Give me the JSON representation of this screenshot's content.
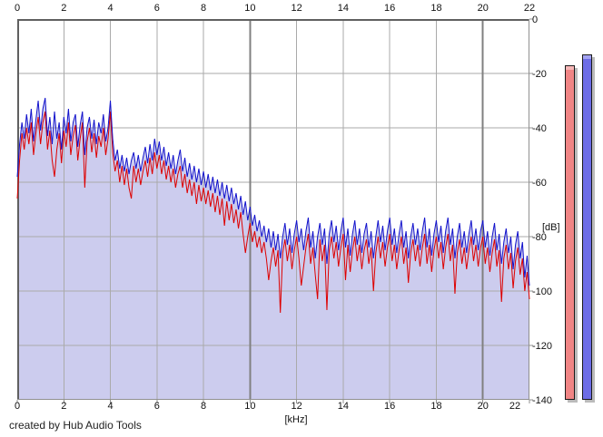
{
  "credit": "created by Hub Audio Tools",
  "colors": {
    "background": "#ffffff",
    "red_trace": "#dd0000",
    "blue_trace": "#1212cc",
    "area_fill": "#ccccee",
    "grid_minor": "#aaaaaa",
    "grid_major": "#808080",
    "axis_dark": "#606060",
    "axis_light": "#909090",
    "meter_red": "#f08585",
    "meter_red_cap": "#f7b6b6",
    "meter_blue": "#6d6de6",
    "meter_blue_cap": "#a3a3f2",
    "meter_shadow": "#bbbbbb"
  },
  "meters": {
    "floor_db": -140,
    "left_bar": {
      "channel": "red",
      "value_db": -17
    },
    "right_bar": {
      "channel": "blue",
      "value_db": -13
    }
  },
  "chart_data": {
    "type": "area",
    "title": "",
    "xlabel": "[kHz]",
    "ylabel": "[dB]",
    "xlim": [
      0,
      22
    ],
    "ylim": [
      -140,
      0
    ],
    "grid": true,
    "x_axis": {
      "ticks": [
        0,
        2,
        4,
        6,
        8,
        10,
        12,
        14,
        16,
        18,
        20,
        22
      ],
      "major_gridlines": [
        10,
        20
      ],
      "unit": "[kHz]"
    },
    "y_axis": {
      "ticks": [
        0,
        -20,
        -40,
        -60,
        -80,
        -100,
        -120,
        -140
      ],
      "unit": "[dB]"
    },
    "x_start": 0,
    "x_step": 0.1,
    "series": [
      {
        "name": "red-channel",
        "color": "#dd0000",
        "values": [
          -66,
          -52,
          -42,
          -48,
          -40,
          -46,
          -38,
          -50,
          -42,
          -36,
          -46,
          -38,
          -34,
          -48,
          -41,
          -52,
          -58,
          -48,
          -42,
          -53,
          -41,
          -47,
          -38,
          -50,
          -43,
          -39,
          -52,
          -44,
          -38,
          -62,
          -45,
          -40,
          -49,
          -42,
          -51,
          -43,
          -47,
          -40,
          -50,
          -44,
          -34,
          -49,
          -56,
          -52,
          -60,
          -54,
          -61,
          -55,
          -62,
          -66,
          -54,
          -60,
          -55,
          -61,
          -56,
          -52,
          -58,
          -51,
          -57,
          -49,
          -55,
          -50,
          -57,
          -52,
          -59,
          -54,
          -60,
          -55,
          -62,
          -57,
          -54,
          -62,
          -57,
          -64,
          -59,
          -65,
          -60,
          -68,
          -61,
          -67,
          -62,
          -68,
          -63,
          -69,
          -64,
          -71,
          -65,
          -72,
          -66,
          -76,
          -67,
          -74,
          -68,
          -75,
          -70,
          -77,
          -71,
          -79,
          -86,
          -80,
          -75,
          -82,
          -78,
          -84,
          -80,
          -86,
          -82,
          -88,
          -96,
          -89,
          -84,
          -91,
          -85,
          -108,
          -86,
          -81,
          -89,
          -83,
          -92,
          -85,
          -80,
          -88,
          -98,
          -91,
          -84,
          -79,
          -90,
          -84,
          -94,
          -103,
          -81,
          -89,
          -83,
          -107,
          -85,
          -80,
          -88,
          -82,
          -91,
          -84,
          -79,
          -96,
          -83,
          -93,
          -85,
          -80,
          -89,
          -83,
          -92,
          -85,
          -81,
          -90,
          -84,
          -100,
          -86,
          -80,
          -88,
          -82,
          -91,
          -84,
          -79,
          -89,
          -83,
          -92,
          -85,
          -80,
          -90,
          -84,
          -97,
          -86,
          -81,
          -89,
          -83,
          -91,
          -84,
          -79,
          -90,
          -83,
          -93,
          -85,
          -80,
          -88,
          -82,
          -92,
          -84,
          -79,
          -89,
          -83,
          -101,
          -86,
          -81,
          -90,
          -84,
          -92,
          -85,
          -80,
          -89,
          -83,
          -91,
          -84,
          -80,
          -90,
          -84,
          -93,
          -86,
          -81,
          -91,
          -85,
          -104,
          -88,
          -83,
          -92,
          -86,
          -99,
          -89,
          -84,
          -94,
          -88,
          -100,
          -93,
          -103
        ]
      },
      {
        "name": "blue-channel",
        "color": "#1212cc",
        "fill": "#ccccee",
        "values": [
          -58,
          -46,
          -38,
          -44,
          -35,
          -42,
          -33,
          -45,
          -37,
          -30,
          -41,
          -33,
          -29,
          -43,
          -36,
          -46,
          -34,
          -44,
          -38,
          -48,
          -36,
          -42,
          -33,
          -45,
          -38,
          -35,
          -47,
          -39,
          -34,
          -50,
          -40,
          -36,
          -44,
          -37,
          -46,
          -38,
          -42,
          -35,
          -45,
          -40,
          -30,
          -44,
          -52,
          -48,
          -55,
          -50,
          -56,
          -51,
          -57,
          -52,
          -49,
          -55,
          -50,
          -56,
          -51,
          -47,
          -53,
          -46,
          -52,
          -44,
          -50,
          -45,
          -52,
          -47,
          -54,
          -49,
          -55,
          -50,
          -57,
          -52,
          -48,
          -56,
          -51,
          -58,
          -53,
          -59,
          -54,
          -60,
          -55,
          -61,
          -56,
          -62,
          -57,
          -63,
          -58,
          -64,
          -59,
          -65,
          -60,
          -66,
          -61,
          -67,
          -62,
          -68,
          -64,
          -70,
          -65,
          -72,
          -67,
          -74,
          -69,
          -76,
          -72,
          -78,
          -74,
          -80,
          -76,
          -82,
          -77,
          -84,
          -78,
          -85,
          -79,
          -88,
          -80,
          -75,
          -83,
          -77,
          -86,
          -79,
          -74,
          -82,
          -77,
          -85,
          -78,
          -73,
          -84,
          -78,
          -88,
          -80,
          -75,
          -83,
          -77,
          -90,
          -79,
          -74,
          -82,
          -76,
          -85,
          -78,
          -73,
          -84,
          -77,
          -87,
          -79,
          -74,
          -83,
          -77,
          -86,
          -79,
          -75,
          -84,
          -78,
          -88,
          -80,
          -74,
          -82,
          -76,
          -85,
          -78,
          -73,
          -83,
          -77,
          -86,
          -79,
          -74,
          -84,
          -78,
          -88,
          -80,
          -75,
          -83,
          -77,
          -85,
          -78,
          -73,
          -84,
          -77,
          -87,
          -79,
          -74,
          -82,
          -76,
          -86,
          -78,
          -73,
          -83,
          -77,
          -88,
          -80,
          -75,
          -84,
          -78,
          -86,
          -79,
          -74,
          -83,
          -77,
          -85,
          -78,
          -74,
          -84,
          -78,
          -87,
          -80,
          -75,
          -85,
          -79,
          -90,
          -82,
          -77,
          -86,
          -80,
          -92,
          -83,
          -78,
          -88,
          -82,
          -95,
          -87,
          -98
        ]
      }
    ]
  }
}
